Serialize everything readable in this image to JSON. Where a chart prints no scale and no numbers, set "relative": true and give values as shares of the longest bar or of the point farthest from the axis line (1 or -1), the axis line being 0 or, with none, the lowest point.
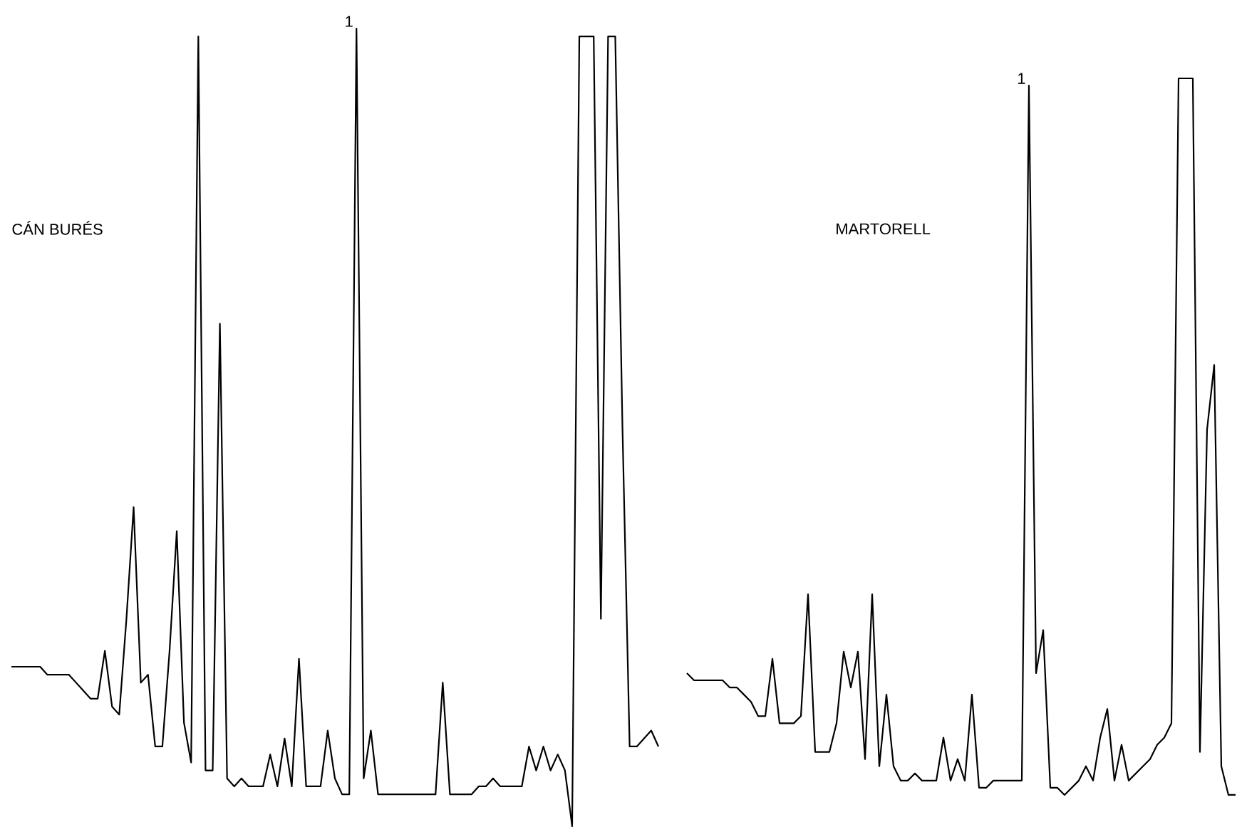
{
  "chart_data": [
    {
      "type": "line",
      "relative": true,
      "categories": [
        null,
        null,
        null,
        null,
        null,
        null,
        null,
        null,
        null,
        null,
        null,
        null,
        null,
        null,
        null,
        null,
        null,
        null,
        null,
        null,
        null,
        null,
        null,
        null,
        null,
        null,
        null,
        null,
        null,
        null,
        null,
        null,
        null,
        null,
        null,
        null,
        null,
        null,
        null,
        null,
        null,
        null,
        null,
        null,
        null,
        null,
        null,
        null,
        null,
        null,
        null,
        null,
        null,
        null,
        null,
        null,
        null,
        null,
        null,
        null,
        null,
        null,
        null,
        null,
        null,
        null,
        null,
        null,
        null,
        null,
        null,
        null,
        null,
        null,
        null,
        null,
        null,
        null,
        null,
        null,
        null,
        null,
        null,
        null,
        null,
        null,
        null,
        null,
        null,
        null,
        null
      ],
      "series": [
        {
          "color": "#000000",
          "values": [
            0.2,
            0.2,
            0.2,
            0.2,
            0.2,
            0.19,
            0.19,
            0.19,
            0.19,
            0.18,
            0.17,
            0.16,
            0.16,
            0.22,
            0.15,
            0.14,
            0.26,
            0.4,
            0.18,
            0.19,
            0.1,
            0.1,
            0.22,
            0.37,
            0.13,
            0.08,
            0.99,
            0.07,
            0.07,
            0.63,
            0.06,
            0.05,
            0.06,
            0.05,
            0.05,
            0.05,
            0.09,
            0.05,
            0.11,
            0.05,
            0.21,
            0.05,
            0.05,
            0.05,
            0.12,
            0.06,
            0.04,
            0.04,
            1,
            0.06,
            0.12,
            0.04,
            0.04,
            0.04,
            0.04,
            0.04,
            0.04,
            0.04,
            0.04,
            0.04,
            0.18,
            0.04,
            0.04,
            0.04,
            0.04,
            0.05,
            0.05,
            0.06,
            0.05,
            0.05,
            0.05,
            0.05,
            0.1,
            0.07,
            0.1,
            0.07,
            0.09,
            0.07,
            0,
            0.99,
            0.99,
            0.99,
            0.26,
            0.99,
            0.99,
            0.5,
            0.1,
            0.1,
            0.11,
            0.12,
            0.1
          ]
        }
      ],
      "annotations": [
        "CÁN BURÉS",
        {
          "text": "1",
          "y": 1
        }
      ]
    },
    {
      "type": "line",
      "relative": true,
      "categories": [
        null,
        null,
        null,
        null,
        null,
        null,
        null,
        null,
        null,
        null,
        null,
        null,
        null,
        null,
        null,
        null,
        null,
        null,
        null,
        null,
        null,
        null,
        null,
        null,
        null,
        null,
        null,
        null,
        null,
        null,
        null,
        null,
        null,
        null,
        null,
        null,
        null,
        null,
        null,
        null,
        null,
        null,
        null,
        null,
        null,
        null,
        null,
        null,
        null,
        null,
        null,
        null,
        null,
        null,
        null,
        null,
        null,
        null,
        null,
        null,
        null,
        null,
        null,
        null,
        null,
        null,
        null,
        null,
        null,
        null,
        null,
        null,
        null,
        null,
        null,
        null,
        null,
        null
      ],
      "series": [
        {
          "color": "#000000",
          "values": [
            0.17,
            0.16,
            0.16,
            0.16,
            0.16,
            0.16,
            0.15,
            0.15,
            0.14,
            0.13,
            0.11,
            0.11,
            0.19,
            0.1,
            0.1,
            0.1,
            0.11,
            0.28,
            0.06,
            0.06,
            0.06,
            0.1,
            0.2,
            0.15,
            0.2,
            0.05,
            0.28,
            0.04,
            0.14,
            0.04,
            0.02,
            0.02,
            0.03,
            0.02,
            0.02,
            0.02,
            0.08,
            0.02,
            0.05,
            0.02,
            0.14,
            0.01,
            0.01,
            0.02,
            0.02,
            0.02,
            0.02,
            0.02,
            0.99,
            0.17,
            0.23,
            0.01,
            0.01,
            0,
            0.01,
            0.02,
            0.04,
            0.02,
            0.08,
            0.12,
            0.02,
            0.07,
            0.02,
            0.03,
            0.04,
            0.05,
            0.07,
            0.08,
            0.1,
            1,
            1,
            1,
            0.06,
            0.51,
            0.6,
            0.04,
            0,
            0
          ]
        }
      ],
      "annotations": [
        "MARTORELL",
        {
          "text": "1",
          "y": 0.99
        }
      ]
    }
  ]
}
